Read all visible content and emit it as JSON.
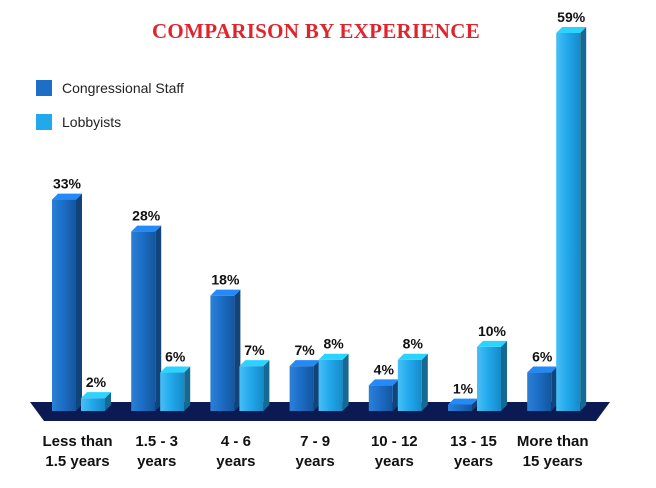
{
  "chart_data": {
    "type": "bar",
    "title": "COMPARISON BY EXPERIENCE",
    "categories": [
      [
        "Less than",
        "1.5 years"
      ],
      [
        "1.5 - 3",
        "years"
      ],
      [
        "4 - 6",
        "years"
      ],
      [
        "7 - 9",
        "years"
      ],
      [
        "10 - 12",
        "years"
      ],
      [
        "13 - 15",
        "years"
      ],
      [
        "More than",
        "15 years"
      ]
    ],
    "series": [
      {
        "name": "Congressional Staff",
        "color": "#1c6ec6",
        "values": [
          33,
          28,
          18,
          7,
          4,
          1,
          6
        ],
        "labels": [
          "33%",
          "28%",
          "18%",
          "7%",
          "4%",
          "1%",
          "6%"
        ]
      },
      {
        "name": "Lobbyists",
        "color": "#22a9ec",
        "values": [
          2,
          6,
          7,
          8,
          8,
          10,
          59
        ],
        "labels": [
          "2%",
          "6%",
          "7%",
          "8%",
          "8%",
          "10%",
          "59%"
        ]
      }
    ],
    "ylim": [
      0,
      59
    ],
    "legend_position": "top-left",
    "floor_color": "#0c1a54",
    "grid": false
  }
}
